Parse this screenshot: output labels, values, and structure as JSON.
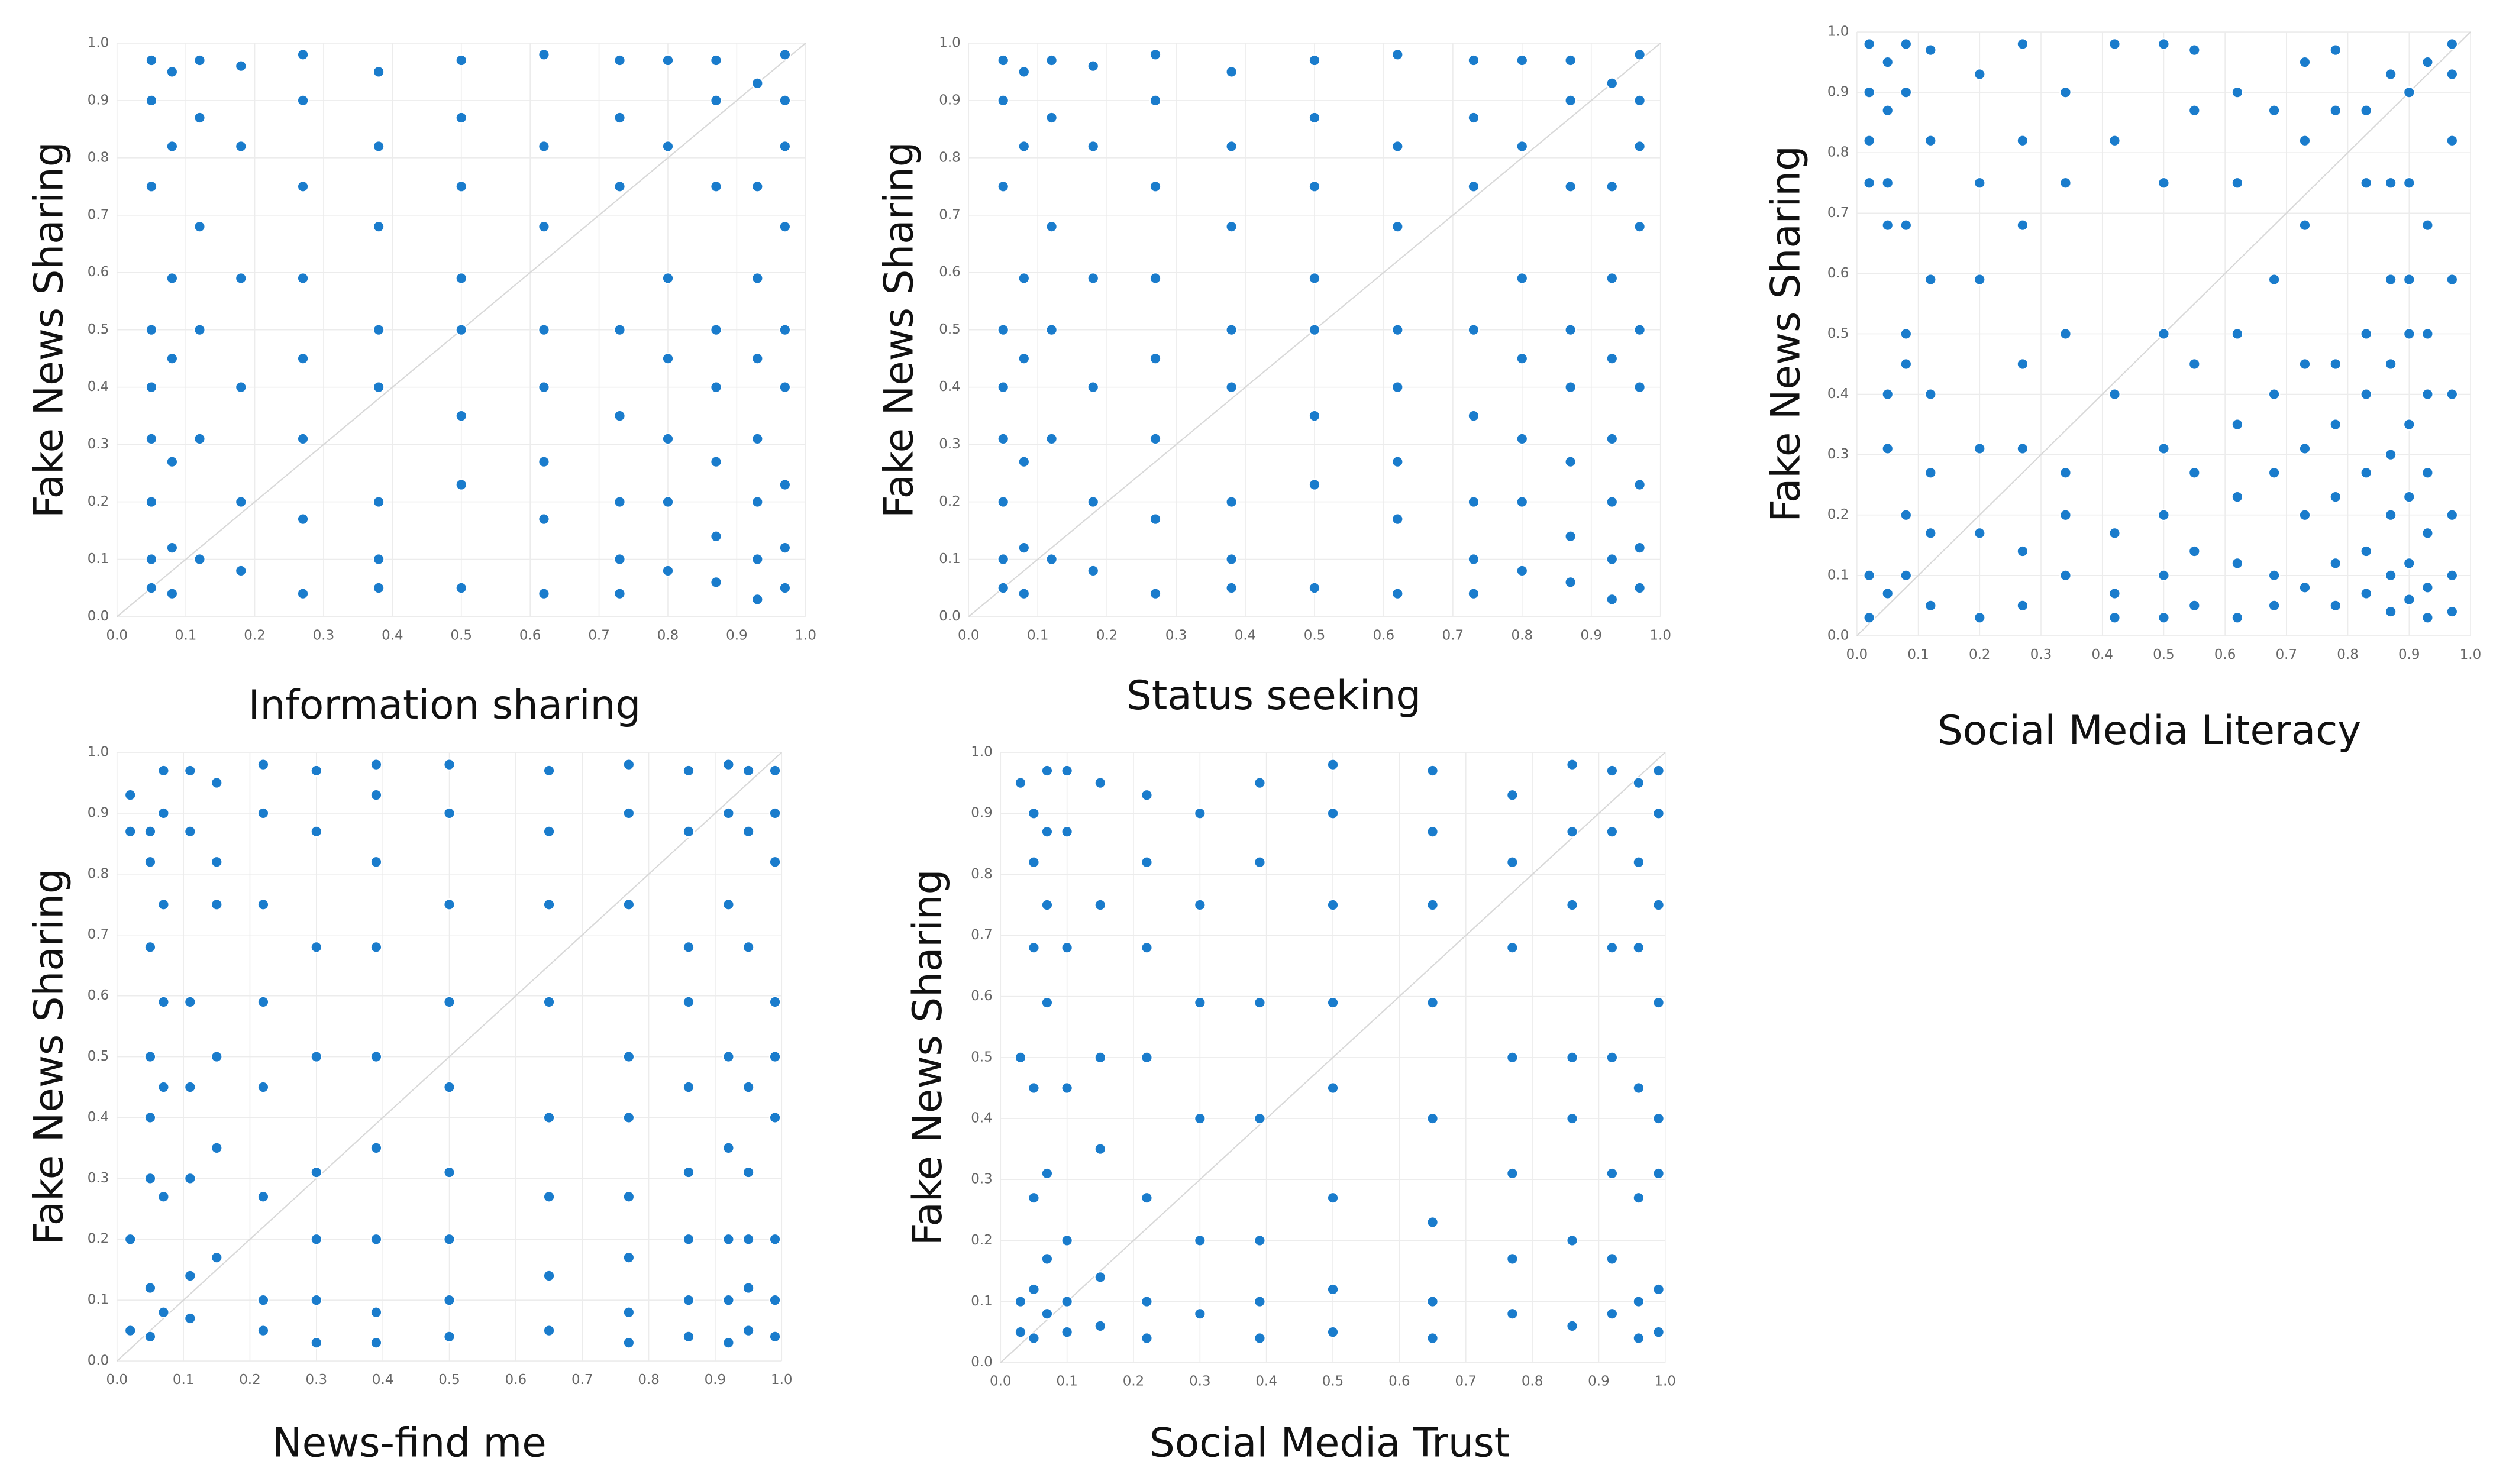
{
  "chart_data": [
    {
      "type": "scatter",
      "x_label": "Information sharing",
      "y_label": "Fake News Sharing",
      "color": "#1a7ccc",
      "grid": true,
      "xlim": [
        0,
        1
      ],
      "ylim": [
        0,
        1
      ],
      "xticks": [
        {
          "value": 0,
          "label": "0.0"
        },
        0.1,
        0.2,
        0.3,
        0.4,
        0.5,
        0.6,
        0.7,
        0.8,
        0.9,
        {
          "value": 1,
          "label": "1.0"
        }
      ],
      "yticks": [
        {
          "value": 0,
          "label": "0.0"
        },
        0.1,
        0.2,
        0.3,
        0.4,
        0.5,
        0.6,
        0.7,
        0.8,
        0.9,
        {
          "value": 1,
          "label": "1.0"
        }
      ],
      "x": [
        0.05,
        0.05,
        0.05,
        0.05,
        0.05,
        0.05,
        0.05,
        0.05,
        0.05,
        0.08,
        0.08,
        0.08,
        0.08,
        0.08,
        0.08,
        0.08,
        0.12,
        0.12,
        0.12,
        0.12,
        0.12,
        0.12,
        0.18,
        0.18,
        0.18,
        0.18,
        0.18,
        0.18,
        0.27,
        0.27,
        0.27,
        0.27,
        0.27,
        0.27,
        0.27,
        0.27,
        0.38,
        0.38,
        0.38,
        0.38,
        0.38,
        0.38,
        0.38,
        0.38,
        0.5,
        0.5,
        0.5,
        0.5,
        0.5,
        0.5,
        0.5,
        0.5,
        0.62,
        0.62,
        0.62,
        0.62,
        0.62,
        0.62,
        0.62,
        0.62,
        0.73,
        0.73,
        0.73,
        0.73,
        0.73,
        0.73,
        0.73,
        0.73,
        0.8,
        0.8,
        0.8,
        0.8,
        0.8,
        0.8,
        0.8,
        0.87,
        0.87,
        0.87,
        0.87,
        0.87,
        0.87,
        0.87,
        0.87,
        0.93,
        0.93,
        0.93,
        0.93,
        0.93,
        0.93,
        0.93,
        0.93,
        0.97,
        0.97,
        0.97,
        0.97,
        0.97,
        0.97,
        0.97,
        0.97,
        0.97
      ],
      "y": [
        0.97,
        0.9,
        0.75,
        0.5,
        0.4,
        0.31,
        0.2,
        0.1,
        0.05,
        0.95,
        0.82,
        0.59,
        0.45,
        0.27,
        0.12,
        0.04,
        0.97,
        0.87,
        0.68,
        0.5,
        0.31,
        0.1,
        0.96,
        0.82,
        0.59,
        0.4,
        0.2,
        0.08,
        0.98,
        0.9,
        0.75,
        0.59,
        0.45,
        0.31,
        0.17,
        0.04,
        0.95,
        0.82,
        0.68,
        0.5,
        0.4,
        0.2,
        0.1,
        0.05,
        0.97,
        0.87,
        0.75,
        0.59,
        0.5,
        0.35,
        0.23,
        0.05,
        0.98,
        0.82,
        0.68,
        0.5,
        0.4,
        0.27,
        0.17,
        0.04,
        0.97,
        0.87,
        0.75,
        0.5,
        0.35,
        0.2,
        0.1,
        0.04,
        0.97,
        0.82,
        0.59,
        0.45,
        0.31,
        0.2,
        0.08,
        0.97,
        0.9,
        0.75,
        0.5,
        0.4,
        0.27,
        0.14,
        0.06,
        0.93,
        0.75,
        0.59,
        0.45,
        0.31,
        0.2,
        0.1,
        0.03,
        0.98,
        0.9,
        0.82,
        0.68,
        0.5,
        0.4,
        0.23,
        0.12,
        0.05
      ]
    },
    {
      "type": "scatter",
      "x_label": "Status seeking",
      "y_label": "Fake News Sharing",
      "color": "#1a7ccc",
      "grid": true,
      "xlim": [
        0,
        1
      ],
      "ylim": [
        0,
        1
      ],
      "xticks": [
        {
          "value": 0,
          "label": "0.0"
        },
        0.1,
        0.2,
        0.3,
        0.4,
        0.5,
        0.6,
        0.7,
        0.8,
        0.9,
        {
          "value": 1,
          "label": "1.0"
        }
      ],
      "yticks": [
        {
          "value": 0,
          "label": "0.0"
        },
        0.1,
        0.2,
        0.3,
        0.4,
        0.5,
        0.6,
        0.7,
        0.8,
        0.9,
        {
          "value": 1,
          "label": "1.0"
        }
      ],
      "x": [
        0.05,
        0.05,
        0.05,
        0.05,
        0.05,
        0.05,
        0.05,
        0.05,
        0.05,
        0.08,
        0.08,
        0.08,
        0.08,
        0.08,
        0.08,
        0.08,
        0.12,
        0.12,
        0.12,
        0.12,
        0.12,
        0.12,
        0.18,
        0.18,
        0.18,
        0.18,
        0.18,
        0.18,
        0.27,
        0.27,
        0.27,
        0.27,
        0.27,
        0.27,
        0.27,
        0.27,
        0.38,
        0.38,
        0.38,
        0.38,
        0.38,
        0.38,
        0.38,
        0.38,
        0.5,
        0.5,
        0.5,
        0.5,
        0.5,
        0.5,
        0.5,
        0.5,
        0.62,
        0.62,
        0.62,
        0.62,
        0.62,
        0.62,
        0.62,
        0.62,
        0.73,
        0.73,
        0.73,
        0.73,
        0.73,
        0.73,
        0.73,
        0.73,
        0.8,
        0.8,
        0.8,
        0.8,
        0.8,
        0.8,
        0.8,
        0.87,
        0.87,
        0.87,
        0.87,
        0.87,
        0.87,
        0.87,
        0.87,
        0.93,
        0.93,
        0.93,
        0.93,
        0.93,
        0.93,
        0.93,
        0.93,
        0.97,
        0.97,
        0.97,
        0.97,
        0.97,
        0.97,
        0.97,
        0.97,
        0.97
      ],
      "y": [
        0.97,
        0.9,
        0.75,
        0.5,
        0.4,
        0.31,
        0.2,
        0.1,
        0.05,
        0.95,
        0.82,
        0.59,
        0.45,
        0.27,
        0.12,
        0.04,
        0.97,
        0.87,
        0.68,
        0.5,
        0.31,
        0.1,
        0.96,
        0.82,
        0.59,
        0.4,
        0.2,
        0.08,
        0.98,
        0.9,
        0.75,
        0.59,
        0.45,
        0.31,
        0.17,
        0.04,
        0.95,
        0.82,
        0.68,
        0.5,
        0.4,
        0.2,
        0.1,
        0.05,
        0.97,
        0.87,
        0.75,
        0.59,
        0.5,
        0.35,
        0.23,
        0.05,
        0.98,
        0.82,
        0.68,
        0.5,
        0.4,
        0.27,
        0.17,
        0.04,
        0.97,
        0.87,
        0.75,
        0.5,
        0.35,
        0.2,
        0.1,
        0.04,
        0.97,
        0.82,
        0.59,
        0.45,
        0.31,
        0.2,
        0.08,
        0.97,
        0.9,
        0.75,
        0.5,
        0.4,
        0.27,
        0.14,
        0.06,
        0.93,
        0.75,
        0.59,
        0.45,
        0.31,
        0.2,
        0.1,
        0.03,
        0.98,
        0.9,
        0.82,
        0.68,
        0.5,
        0.4,
        0.23,
        0.12,
        0.05
      ]
    },
    {
      "type": "scatter",
      "x_label": "Social Media Literacy",
      "y_label": "Fake News Sharing",
      "color": "#1a7ccc",
      "grid": true,
      "xlim": [
        0,
        1
      ],
      "ylim": [
        0,
        1
      ],
      "xticks": [
        {
          "value": 0,
          "label": "0.0"
        },
        0.1,
        0.2,
        0.3,
        0.4,
        0.5,
        0.6,
        0.7,
        0.8,
        0.9,
        {
          "value": 1,
          "label": "1.0"
        }
      ],
      "yticks": [
        {
          "value": 0,
          "label": "0.0"
        },
        0.1,
        0.2,
        0.3,
        0.4,
        0.5,
        0.6,
        0.7,
        0.8,
        0.9,
        {
          "value": 1,
          "label": "1.0"
        }
      ],
      "x": [
        0.02,
        0.02,
        0.02,
        0.02,
        0.02,
        0.02,
        0.05,
        0.05,
        0.05,
        0.05,
        0.05,
        0.05,
        0.05,
        0.08,
        0.08,
        0.08,
        0.08,
        0.08,
        0.08,
        0.08,
        0.12,
        0.12,
        0.12,
        0.12,
        0.12,
        0.12,
        0.12,
        0.2,
        0.2,
        0.2,
        0.2,
        0.2,
        0.2,
        0.27,
        0.27,
        0.27,
        0.27,
        0.27,
        0.27,
        0.27,
        0.34,
        0.34,
        0.34,
        0.34,
        0.34,
        0.34,
        0.42,
        0.42,
        0.42,
        0.42,
        0.42,
        0.42,
        0.5,
        0.5,
        0.5,
        0.5,
        0.5,
        0.5,
        0.5,
        0.55,
        0.55,
        0.55,
        0.55,
        0.55,
        0.55,
        0.62,
        0.62,
        0.62,
        0.62,
        0.62,
        0.62,
        0.62,
        0.68,
        0.68,
        0.68,
        0.68,
        0.68,
        0.68,
        0.73,
        0.73,
        0.73,
        0.73,
        0.73,
        0.73,
        0.73,
        0.78,
        0.78,
        0.78,
        0.78,
        0.78,
        0.78,
        0.78,
        0.83,
        0.83,
        0.83,
        0.83,
        0.83,
        0.83,
        0.83,
        0.87,
        0.87,
        0.87,
        0.87,
        0.87,
        0.87,
        0.87,
        0.87,
        0.9,
        0.9,
        0.9,
        0.9,
        0.9,
        0.9,
        0.9,
        0.9,
        0.93,
        0.93,
        0.93,
        0.93,
        0.93,
        0.93,
        0.93,
        0.93,
        0.97,
        0.97,
        0.97,
        0.97,
        0.97,
        0.97,
        0.97,
        0.97
      ],
      "y": [
        0.98,
        0.9,
        0.82,
        0.75,
        0.1,
        0.03,
        0.95,
        0.87,
        0.75,
        0.68,
        0.4,
        0.31,
        0.07,
        0.98,
        0.9,
        0.68,
        0.5,
        0.45,
        0.2,
        0.1,
        0.97,
        0.82,
        0.59,
        0.4,
        0.27,
        0.17,
        0.05,
        0.93,
        0.75,
        0.59,
        0.31,
        0.17,
        0.03,
        0.98,
        0.82,
        0.68,
        0.45,
        0.31,
        0.14,
        0.05,
        0.9,
        0.75,
        0.5,
        0.27,
        0.2,
        0.1,
        0.98,
        0.82,
        0.4,
        0.17,
        0.07,
        0.03,
        0.98,
        0.75,
        0.5,
        0.31,
        0.2,
        0.1,
        0.03,
        0.97,
        0.87,
        0.45,
        0.27,
        0.14,
        0.05,
        0.9,
        0.75,
        0.5,
        0.35,
        0.23,
        0.12,
        0.03,
        0.87,
        0.59,
        0.4,
        0.27,
        0.1,
        0.05,
        0.95,
        0.82,
        0.68,
        0.45,
        0.31,
        0.2,
        0.08,
        0.97,
        0.87,
        0.45,
        0.35,
        0.23,
        0.12,
        0.05,
        0.87,
        0.75,
        0.5,
        0.4,
        0.27,
        0.14,
        0.07,
        0.93,
        0.75,
        0.59,
        0.45,
        0.3,
        0.2,
        0.1,
        0.04,
        0.9,
        0.75,
        0.59,
        0.5,
        0.35,
        0.23,
        0.12,
        0.06,
        0.95,
        0.68,
        0.5,
        0.4,
        0.27,
        0.17,
        0.08,
        0.03,
        0.98,
        0.93,
        0.82,
        0.59,
        0.4,
        0.2,
        0.1,
        0.04
      ]
    },
    {
      "type": "scatter",
      "x_label": "News-find me",
      "y_label": "Fake News Sharing",
      "color": "#1a7ccc",
      "grid": true,
      "xlim": [
        0,
        1
      ],
      "ylim": [
        0,
        1
      ],
      "xticks": [
        {
          "value": 0,
          "label": "0.0"
        },
        0.1,
        0.2,
        0.3,
        0.4,
        0.5,
        0.6,
        0.7,
        0.8,
        0.9,
        {
          "value": 1,
          "label": "1.0"
        }
      ],
      "yticks": [
        {
          "value": 0,
          "label": "0.0"
        },
        0.1,
        0.2,
        0.3,
        0.4,
        0.5,
        0.6,
        0.7,
        0.8,
        0.9,
        {
          "value": 1,
          "label": "1.0"
        }
      ],
      "x": [
        0.02,
        0.02,
        0.02,
        0.02,
        0.05,
        0.05,
        0.05,
        0.05,
        0.05,
        0.05,
        0.05,
        0.05,
        0.07,
        0.07,
        0.07,
        0.07,
        0.07,
        0.07,
        0.07,
        0.11,
        0.11,
        0.11,
        0.11,
        0.11,
        0.11,
        0.11,
        0.15,
        0.15,
        0.15,
        0.15,
        0.15,
        0.15,
        0.22,
        0.22,
        0.22,
        0.22,
        0.22,
        0.22,
        0.22,
        0.22,
        0.3,
        0.3,
        0.3,
        0.3,
        0.3,
        0.3,
        0.3,
        0.3,
        0.39,
        0.39,
        0.39,
        0.39,
        0.39,
        0.39,
        0.39,
        0.39,
        0.39,
        0.5,
        0.5,
        0.5,
        0.5,
        0.5,
        0.5,
        0.5,
        0.5,
        0.5,
        0.65,
        0.65,
        0.65,
        0.65,
        0.65,
        0.65,
        0.65,
        0.65,
        0.77,
        0.77,
        0.77,
        0.77,
        0.77,
        0.77,
        0.77,
        0.77,
        0.77,
        0.86,
        0.86,
        0.86,
        0.86,
        0.86,
        0.86,
        0.86,
        0.86,
        0.86,
        0.92,
        0.92,
        0.92,
        0.92,
        0.92,
        0.92,
        0.92,
        0.92,
        0.95,
        0.95,
        0.95,
        0.95,
        0.95,
        0.95,
        0.95,
        0.95,
        0.99,
        0.99,
        0.99,
        0.99,
        0.99,
        0.99,
        0.99,
        0.99,
        0.99
      ],
      "y": [
        0.93,
        0.87,
        0.2,
        0.05,
        0.87,
        0.82,
        0.68,
        0.5,
        0.4,
        0.3,
        0.12,
        0.04,
        0.97,
        0.9,
        0.75,
        0.59,
        0.45,
        0.27,
        0.08,
        0.97,
        0.87,
        0.59,
        0.45,
        0.3,
        0.14,
        0.07,
        0.95,
        0.82,
        0.75,
        0.5,
        0.35,
        0.17,
        0.98,
        0.9,
        0.75,
        0.59,
        0.45,
        0.27,
        0.1,
        0.05,
        0.97,
        0.87,
        0.68,
        0.5,
        0.31,
        0.2,
        0.1,
        0.03,
        0.98,
        0.93,
        0.82,
        0.68,
        0.5,
        0.35,
        0.2,
        0.08,
        0.03,
        0.98,
        0.9,
        0.75,
        0.59,
        0.45,
        0.31,
        0.2,
        0.1,
        0.04,
        0.97,
        0.87,
        0.75,
        0.59,
        0.4,
        0.27,
        0.14,
        0.05,
        0.98,
        0.9,
        0.75,
        0.5,
        0.4,
        0.27,
        0.17,
        0.08,
        0.03,
        0.97,
        0.87,
        0.68,
        0.59,
        0.45,
        0.31,
        0.2,
        0.1,
        0.04,
        0.98,
        0.9,
        0.75,
        0.5,
        0.35,
        0.2,
        0.1,
        0.03,
        0.97,
        0.87,
        0.68,
        0.45,
        0.31,
        0.2,
        0.12,
        0.05,
        0.97,
        0.9,
        0.82,
        0.59,
        0.5,
        0.4,
        0.2,
        0.1,
        0.04
      ]
    },
    {
      "type": "scatter",
      "x_label": "Social Media Trust",
      "y_label": "Fake News Sharing",
      "color": "#1a7ccc",
      "grid": true,
      "xlim": [
        0,
        1
      ],
      "ylim": [
        0,
        1
      ],
      "xticks": [
        {
          "value": 0,
          "label": "0.0"
        },
        0.1,
        0.2,
        0.3,
        0.4,
        0.5,
        0.6,
        0.7,
        0.8,
        0.9,
        {
          "value": 1,
          "label": "1.0"
        }
      ],
      "yticks": [
        {
          "value": 0,
          "label": "0.0"
        },
        0.1,
        0.2,
        0.3,
        0.4,
        0.5,
        0.6,
        0.7,
        0.8,
        0.9,
        {
          "value": 1,
          "label": "1.0"
        }
      ],
      "x": [
        0.03,
        0.03,
        0.03,
        0.03,
        0.05,
        0.05,
        0.05,
        0.05,
        0.05,
        0.05,
        0.05,
        0.07,
        0.07,
        0.07,
        0.07,
        0.07,
        0.07,
        0.07,
        0.1,
        0.1,
        0.1,
        0.1,
        0.1,
        0.1,
        0.1,
        0.15,
        0.15,
        0.15,
        0.15,
        0.15,
        0.15,
        0.22,
        0.22,
        0.22,
        0.22,
        0.22,
        0.22,
        0.22,
        0.3,
        0.3,
        0.3,
        0.3,
        0.3,
        0.3,
        0.39,
        0.39,
        0.39,
        0.39,
        0.39,
        0.39,
        0.39,
        0.5,
        0.5,
        0.5,
        0.5,
        0.5,
        0.5,
        0.5,
        0.5,
        0.65,
        0.65,
        0.65,
        0.65,
        0.65,
        0.65,
        0.65,
        0.65,
        0.77,
        0.77,
        0.77,
        0.77,
        0.77,
        0.77,
        0.77,
        0.86,
        0.86,
        0.86,
        0.86,
        0.86,
        0.86,
        0.86,
        0.92,
        0.92,
        0.92,
        0.92,
        0.92,
        0.92,
        0.92,
        0.96,
        0.96,
        0.96,
        0.96,
        0.96,
        0.96,
        0.96,
        0.99,
        0.99,
        0.99,
        0.99,
        0.99,
        0.99,
        0.99,
        0.99
      ],
      "y": [
        0.95,
        0.5,
        0.1,
        0.05,
        0.9,
        0.82,
        0.68,
        0.45,
        0.27,
        0.12,
        0.04,
        0.97,
        0.87,
        0.75,
        0.59,
        0.31,
        0.17,
        0.08,
        0.97,
        0.87,
        0.68,
        0.45,
        0.2,
        0.1,
        0.05,
        0.95,
        0.75,
        0.5,
        0.35,
        0.14,
        0.06,
        0.93,
        0.82,
        0.68,
        0.5,
        0.27,
        0.1,
        0.04,
        0.9,
        0.75,
        0.59,
        0.4,
        0.2,
        0.08,
        0.95,
        0.82,
        0.59,
        0.4,
        0.2,
        0.1,
        0.04,
        0.98,
        0.9,
        0.75,
        0.59,
        0.45,
        0.27,
        0.12,
        0.05,
        0.97,
        0.87,
        0.75,
        0.59,
        0.4,
        0.23,
        0.1,
        0.04,
        0.93,
        0.82,
        0.68,
        0.5,
        0.31,
        0.17,
        0.08,
        0.98,
        0.87,
        0.75,
        0.5,
        0.4,
        0.2,
        0.06,
        0.97,
        0.87,
        0.68,
        0.5,
        0.31,
        0.17,
        0.08,
        0.95,
        0.82,
        0.68,
        0.45,
        0.27,
        0.1,
        0.04,
        0.97,
        0.9,
        0.75,
        0.59,
        0.4,
        0.31,
        0.12,
        0.05
      ]
    }
  ]
}
